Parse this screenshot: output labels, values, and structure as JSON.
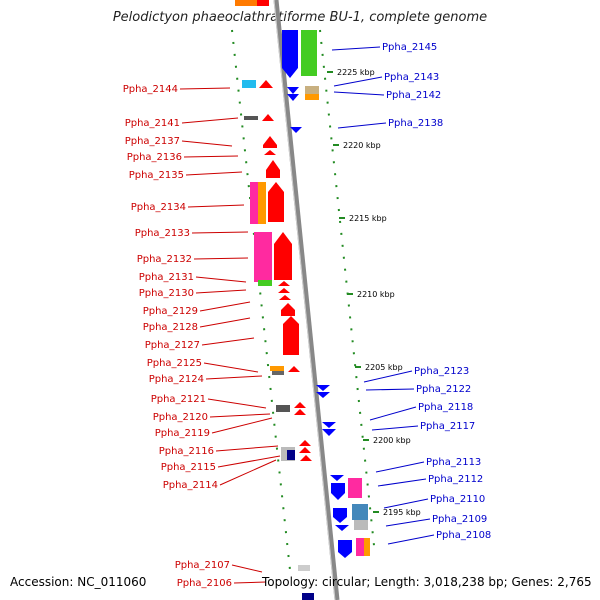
{
  "title": "Pelodictyon phaeoclathratiforme BU-1, complete genome",
  "footer": {
    "accession": "Accession: NC_011060",
    "summary": "Topology: circular; Length: 3,018,238 bp; Genes: 2,765"
  },
  "colors": {
    "left_label": "#cc0000",
    "right_label": "#0000cc",
    "gene_red": "#ff0000",
    "gene_blue": "#0000ff",
    "gene_green": "#44cc22",
    "axis": "#888888",
    "tick_green": "#228b22"
  },
  "kbp_ticks": [
    {
      "label": "2225 kbp"
    },
    {
      "label": "2220 kbp"
    },
    {
      "label": "2215 kbp"
    },
    {
      "label": "2210 kbp"
    },
    {
      "label": "2205 kbp"
    },
    {
      "label": "2200 kbp"
    },
    {
      "label": "2195 kbp"
    }
  ],
  "left_labels": [
    "Ppha_2144",
    "Ppha_2141",
    "Ppha_2137",
    "Ppha_2136",
    "Ppha_2135",
    "Ppha_2134",
    "Ppha_2133",
    "Ppha_2132",
    "Ppha_2131",
    "Ppha_2130",
    "Ppha_2129",
    "Ppha_2128",
    "Ppha_2127",
    "Ppha_2125",
    "Ppha_2124",
    "Ppha_2121",
    "Ppha_2120",
    "Ppha_2119",
    "Ppha_2116",
    "Ppha_2115",
    "Ppha_2114",
    "Ppha_2107",
    "Ppha_2106"
  ],
  "right_labels": [
    "Ppha_2145",
    "Ppha_2143",
    "Ppha_2142",
    "Ppha_2138",
    "Ppha_2123",
    "Ppha_2122",
    "Ppha_2118",
    "Ppha_2117",
    "Ppha_2113",
    "Ppha_2112",
    "Ppha_2110",
    "Ppha_2109",
    "Ppha_2108"
  ]
}
